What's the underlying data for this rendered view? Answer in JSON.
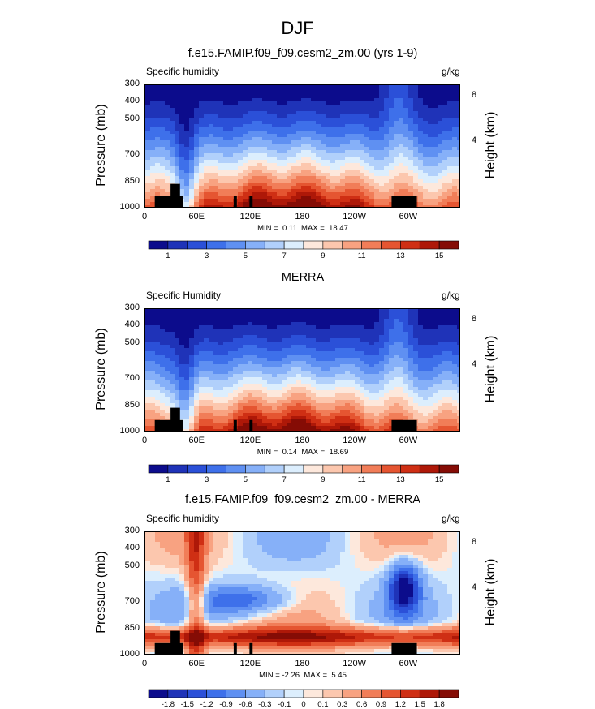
{
  "figure": {
    "title": "DJF"
  },
  "panels": [
    {
      "title": "f.e15.FAMIP.f09_f09.cesm2_zm.00 (yrs 1-9)",
      "variable": "Specific humidity",
      "units": "g/kg",
      "ylabel": "Pressure (mb)",
      "rlabel": "Height (km)",
      "minmax": "MIN =  0.11  MAX =  18.47",
      "kind": "abs"
    },
    {
      "title": "MERRA",
      "variable": "Specific Humidity",
      "units": "g/kg",
      "ylabel": "Pressure (mb)",
      "rlabel": "Height (km)",
      "minmax": "MIN =  0.14  MAX =  18.69",
      "kind": "abs"
    },
    {
      "title": "f.e15.FAMIP.f09_f09.cesm2_zm.00 - MERRA",
      "variable": "Specific humidity",
      "units": "g/kg",
      "ylabel": "Pressure (mb)",
      "rlabel": "Height (km)",
      "minmax": "MIN = -2.26  MAX =  5.45",
      "kind": "diff"
    }
  ],
  "axes": {
    "yticks": [
      "300",
      "400",
      "500",
      "700",
      "850",
      "1000"
    ],
    "xticks": [
      "0",
      "60E",
      "120E",
      "180",
      "120W",
      "60W"
    ],
    "rticks": [
      "8",
      "4"
    ]
  },
  "colorbars": {
    "abs_labels": [
      "1",
      "3",
      "5",
      "7",
      "9",
      "11",
      "13",
      "15"
    ],
    "abs_colors": [
      "#0c0c8c",
      "#1f33b8",
      "#2b50d8",
      "#3e70ea",
      "#5f90f2",
      "#86b0f8",
      "#b1d0fb",
      "#dceefd",
      "#fde8dc",
      "#fcc7ae",
      "#f8a281",
      "#f17d58",
      "#e55531",
      "#cf2f14",
      "#ae1808",
      "#850c05"
    ],
    "diff_labels": [
      "-1.8",
      "-1.5",
      "-1.2",
      "-0.9",
      "-0.6",
      "-0.3",
      "-0.1",
      "0",
      "0.1",
      "0.3",
      "0.6",
      "0.9",
      "1.2",
      "1.5",
      "1.8"
    ],
    "diff_colors": [
      "#0c0c8c",
      "#1f33b8",
      "#2b50d8",
      "#3e70ea",
      "#5f90f2",
      "#86b0f8",
      "#b1d0fb",
      "#dceefd",
      "#fde8dc",
      "#fcc7ae",
      "#f8a281",
      "#f17d58",
      "#e55531",
      "#cf2f14",
      "#ae1808",
      "#850c05"
    ]
  },
  "chart_data": [
    {
      "type": "heatmap",
      "title": "f.e15.FAMIP.f09_f09.cesm2_zm.00 (yrs 1-9)",
      "subtitle": "Specific humidity",
      "units": "g/kg",
      "xlabel": "",
      "ylabel": "Pressure (mb)",
      "y_right_label": "Height (km)",
      "x_ticks": [
        "0",
        "60E",
        "120E",
        "180",
        "120W",
        "60W"
      ],
      "y_ticks": [
        300,
        400,
        500,
        700,
        850,
        1000
      ],
      "y_right_ticks": [
        8,
        4
      ],
      "levels": [
        1,
        2,
        3,
        4,
        5,
        6,
        7,
        8,
        9,
        10,
        11,
        12,
        13,
        14,
        15
      ],
      "min": 0.11,
      "max": 18.47
    },
    {
      "type": "heatmap",
      "title": "MERRA",
      "subtitle": "Specific Humidity",
      "units": "g/kg",
      "xlabel": "",
      "ylabel": "Pressure (mb)",
      "y_right_label": "Height (km)",
      "x_ticks": [
        "0",
        "60E",
        "120E",
        "180",
        "120W",
        "60W"
      ],
      "y_ticks": [
        300,
        400,
        500,
        700,
        850,
        1000
      ],
      "y_right_ticks": [
        8,
        4
      ],
      "levels": [
        1,
        2,
        3,
        4,
        5,
        6,
        7,
        8,
        9,
        10,
        11,
        12,
        13,
        14,
        15
      ],
      "min": 0.14,
      "max": 18.69
    },
    {
      "type": "heatmap",
      "title": "f.e15.FAMIP.f09_f09.cesm2_zm.00 - MERRA",
      "subtitle": "Specific humidity",
      "units": "g/kg",
      "xlabel": "",
      "ylabel": "Pressure (mb)",
      "y_right_label": "Height (km)",
      "x_ticks": [
        "0",
        "60E",
        "120E",
        "180",
        "120W",
        "60W"
      ],
      "y_ticks": [
        300,
        400,
        500,
        700,
        850,
        1000
      ],
      "y_right_ticks": [
        8,
        4
      ],
      "levels": [
        -1.8,
        -1.5,
        -1.2,
        -0.9,
        -0.6,
        -0.3,
        -0.1,
        0,
        0.1,
        0.3,
        0.6,
        0.9,
        1.2,
        1.5,
        1.8
      ],
      "min": -2.26,
      "max": 5.45
    }
  ]
}
